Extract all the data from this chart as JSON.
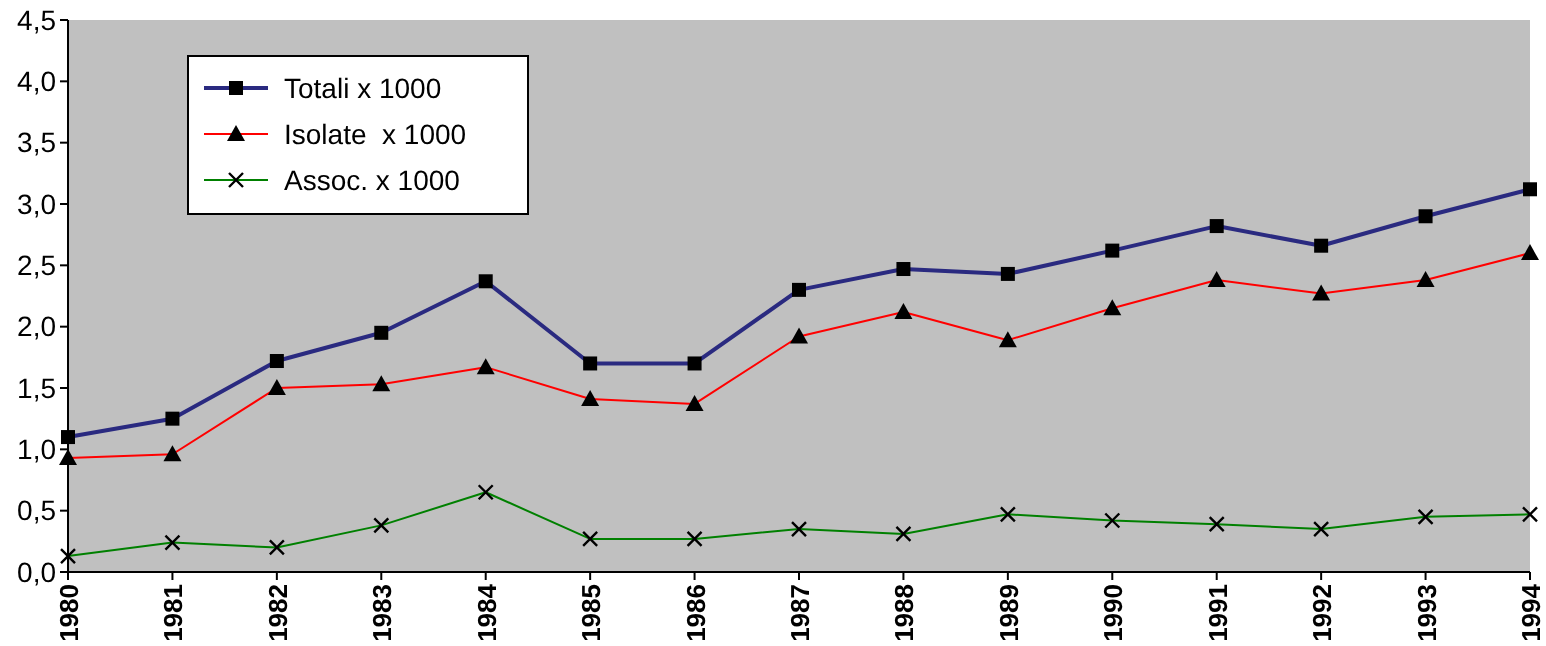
{
  "chart_data": {
    "type": "line",
    "categories": [
      "1980",
      "1981",
      "1982",
      "1983",
      "1984",
      "1985",
      "1986",
      "1987",
      "1988",
      "1989",
      "1990",
      "1991",
      "1992",
      "1993",
      "1994"
    ],
    "series": [
      {
        "name": "Totali x 1000",
        "color": "#2a2a80",
        "marker": "square",
        "values": [
          1.1,
          1.25,
          1.72,
          1.95,
          2.37,
          1.7,
          1.7,
          2.3,
          2.47,
          2.43,
          2.62,
          2.82,
          2.66,
          2.9,
          3.12
        ]
      },
      {
        "name": "Isolate  x 1000",
        "color": "#ff0000",
        "marker": "triangle",
        "values": [
          0.93,
          0.96,
          1.5,
          1.53,
          1.67,
          1.41,
          1.37,
          1.92,
          2.12,
          1.89,
          2.15,
          2.38,
          2.27,
          2.38,
          2.6
        ]
      },
      {
        "name": "Assoc. x 1000",
        "color": "#008000",
        "marker": "cross",
        "values": [
          0.13,
          0.24,
          0.2,
          0.38,
          0.65,
          0.27,
          0.27,
          0.35,
          0.31,
          0.47,
          0.42,
          0.39,
          0.35,
          0.45,
          0.47
        ]
      }
    ],
    "ylim": [
      0,
      4.5
    ],
    "yticks": [
      {
        "value": 0,
        "label": "0,0"
      },
      {
        "value": 0.5,
        "label": "0,5"
      },
      {
        "value": 1,
        "label": "1,0"
      },
      {
        "value": 1.5,
        "label": "1,5"
      },
      {
        "value": 2,
        "label": "2,0"
      },
      {
        "value": 2.5,
        "label": "2,5"
      },
      {
        "value": 3,
        "label": "3,0"
      },
      {
        "value": 3.5,
        "label": "3,5"
      },
      {
        "value": 4,
        "label": "4,0"
      },
      {
        "value": 4.5,
        "label": "4,5"
      }
    ],
    "legend": "top left"
  }
}
